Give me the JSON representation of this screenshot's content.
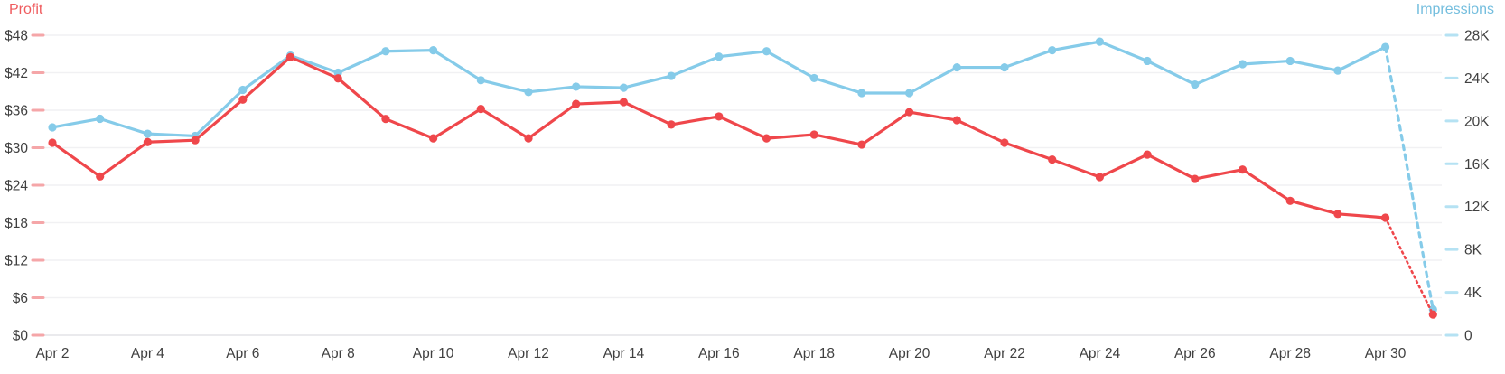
{
  "chart_data": {
    "type": "line",
    "x": [
      "Apr 2",
      "Apr 3",
      "Apr 4",
      "Apr 5",
      "Apr 6",
      "Apr 7",
      "Apr 8",
      "Apr 9",
      "Apr 10",
      "Apr 11",
      "Apr 12",
      "Apr 13",
      "Apr 14",
      "Apr 15",
      "Apr 16",
      "Apr 17",
      "Apr 18",
      "Apr 19",
      "Apr 20",
      "Apr 21",
      "Apr 22",
      "Apr 23",
      "Apr 24",
      "Apr 25",
      "Apr 26",
      "Apr 27",
      "Apr 28",
      "Apr 29",
      "Apr 30",
      "May 1"
    ],
    "x_tick_labels": [
      "Apr 2",
      "Apr 4",
      "Apr 6",
      "Apr 8",
      "Apr 10",
      "Apr 12",
      "Apr 14",
      "Apr 16",
      "Apr 18",
      "Apr 20",
      "Apr 22",
      "Apr 24",
      "Apr 26",
      "Apr 28",
      "Apr 30"
    ],
    "series": [
      {
        "name": "Impressions",
        "axis": "right",
        "color": "#85cbe9",
        "last_segment": "dashed",
        "values": [
          19400,
          20200,
          18800,
          18600,
          22900,
          26100,
          24500,
          26500,
          26600,
          23800,
          22700,
          23200,
          23100,
          24200,
          26000,
          26500,
          24000,
          22600,
          22600,
          25000,
          25000,
          26600,
          27400,
          25600,
          23400,
          25300,
          25600,
          24700,
          26900,
          2400
        ]
      },
      {
        "name": "Profit",
        "axis": "left",
        "color": "#ef474b",
        "last_segment": "dotted",
        "values": [
          30.8,
          25.4,
          30.9,
          31.2,
          37.7,
          44.5,
          41.1,
          34.6,
          31.5,
          36.2,
          31.5,
          37.0,
          37.3,
          33.7,
          35.0,
          31.5,
          32.1,
          30.5,
          35.7,
          34.4,
          30.8,
          28.1,
          25.3,
          28.9,
          25.0,
          26.5,
          21.5,
          19.4,
          18.8,
          3.3
        ]
      }
    ],
    "left_axis": {
      "title": "Profit",
      "title_color": "#ef5b5e",
      "tick_labels": [
        "$0",
        "$6",
        "$12",
        "$18",
        "$24",
        "$30",
        "$36",
        "$42",
        "$48"
      ],
      "min": 0,
      "max": 48,
      "tick_color": "#f5a6a8"
    },
    "right_axis": {
      "title": "Impressions",
      "title_color": "#74bede",
      "tick_labels": [
        "0",
        "4K",
        "8K",
        "12K",
        "16K",
        "20K",
        "24K",
        "28K"
      ],
      "min": 0,
      "max": 28000,
      "tick_color": "#b5e2f3"
    },
    "grid": {
      "color": "#f1f1f3",
      "baseline_color": "#e4e4e7",
      "on": true
    },
    "legend_position": "none",
    "text_color": "#404040"
  }
}
